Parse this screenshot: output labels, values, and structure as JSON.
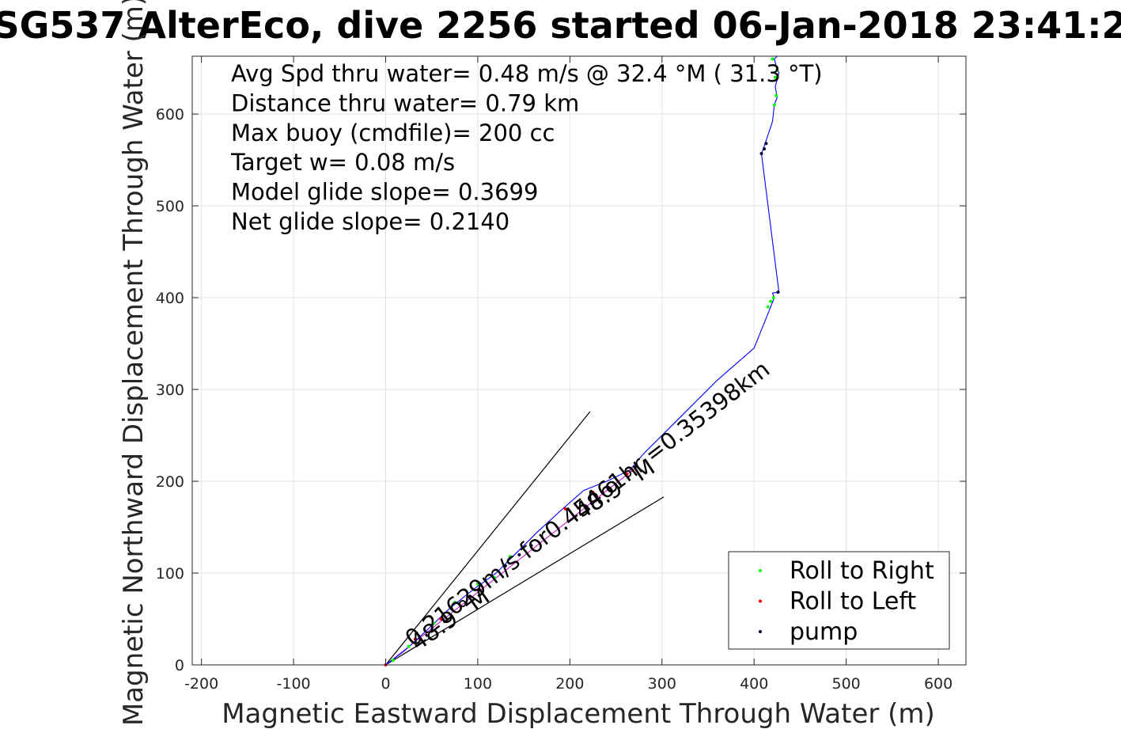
{
  "chart_data": {
    "type": "line",
    "title": "SG537 AlterEco, dive 2256 started 06-Jan-2018 23:41:2",
    "xlabel": "Magnetic Eastward Displacement Through Water (m)",
    "ylabel": "Magnetic Northward Displacement Through Water (m)",
    "xlim": [
      -210,
      630
    ],
    "ylim": [
      0,
      663
    ],
    "xticks": [
      "-200",
      "-100",
      "0",
      "100",
      "200",
      "300",
      "400",
      "500",
      "600"
    ],
    "xtick_values": [
      -200,
      -100,
      0,
      100,
      200,
      300,
      400,
      500,
      600
    ],
    "yticks": [
      "0",
      "100",
      "200",
      "300",
      "400",
      "500",
      "600"
    ],
    "ytick_values": [
      0,
      100,
      200,
      300,
      400,
      500,
      600
    ],
    "grid": true,
    "legend_position": "bottom-right",
    "annotations": [
      "Avg Spd thru water=  0.48 m/s @  32.4 °M ( 31.3 °T)",
      "Distance thru water=  0.79 km",
      "Max buoy (cmdfile)= 200 cc",
      "Target w= 0.08 m/s",
      "Model glide slope= 0.3699",
      "Net glide slope= 0.2140"
    ],
    "vector_labels": {
      "long": "0.21629m/s for0.45461hr =0.35398km",
      "short": "48.9 °M",
      "mid": "48.9 °M"
    },
    "track": {
      "x": [
        0,
        20,
        45,
        70,
        95,
        120,
        140,
        165,
        190,
        215,
        240,
        265,
        280,
        320,
        360,
        400,
        410,
        418,
        422,
        420,
        427,
        408,
        410,
        412,
        420,
        422,
        425,
        423,
        427,
        424,
        422,
        425
      ],
      "y": [
        0,
        15,
        38,
        62,
        82,
        100,
        120,
        145,
        168,
        190,
        200,
        212,
        230,
        270,
        310,
        345,
        370,
        390,
        400,
        405,
        406,
        557,
        562,
        568,
        592,
        610,
        618,
        630,
        645,
        652,
        660,
        663
      ]
    },
    "guide_lines": [
      {
        "x": [
          0,
          222
        ],
        "y": [
          0,
          276
        ]
      },
      {
        "x": [
          0,
          302
        ],
        "y": [
          0,
          183
        ]
      }
    ],
    "series": [
      {
        "name": "Roll to Right",
        "color": "#00ff00",
        "x": [
          8,
          25,
          52,
          75,
          100,
          118,
          135,
          415,
          418,
          421,
          423,
          425,
          424,
          422,
          420
        ],
        "y": [
          5,
          20,
          45,
          68,
          88,
          95,
          118,
          390,
          396,
          400,
          640,
          648,
          620,
          610,
          660
        ]
      },
      {
        "name": "Roll to Left",
        "color": "#ff0000",
        "x": [
          0,
          32,
          60,
          195,
          225,
          262,
          268
        ],
        "y": [
          0,
          28,
          50,
          170,
          188,
          208,
          212
        ]
      },
      {
        "name": "pump",
        "color": "#000033",
        "x": [
          130,
          145,
          158,
          426,
          408,
          411,
          413
        ],
        "y": [
          108,
          120,
          130,
          406,
          557,
          562,
          568
        ]
      }
    ]
  }
}
